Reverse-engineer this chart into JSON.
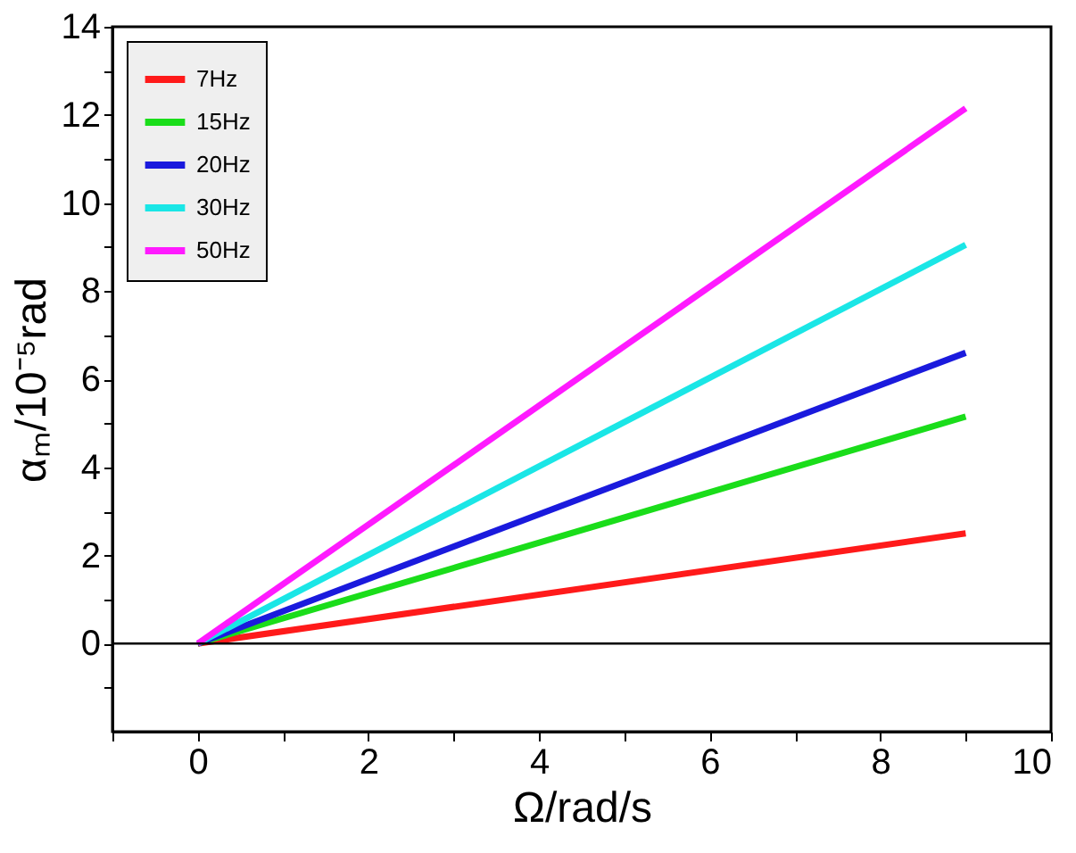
{
  "chart_data": {
    "type": "line",
    "xlabel": "Ω/rad/s",
    "ylabel": "αₘ/10⁻⁵rad",
    "x": [
      0,
      9
    ],
    "series": [
      {
        "name": "7Hz",
        "color": "#ff1a1a",
        "values": [
          0,
          2.5
        ]
      },
      {
        "name": "15Hz",
        "color": "#1add1a",
        "values": [
          0,
          5.15
        ]
      },
      {
        "name": "20Hz",
        "color": "#1a1add",
        "values": [
          0,
          6.6
        ]
      },
      {
        "name": "30Hz",
        "color": "#1ae6e6",
        "values": [
          0,
          9.05
        ]
      },
      {
        "name": "50Hz",
        "color": "#ff1aff",
        "values": [
          0,
          12.15
        ]
      }
    ],
    "xlim": [
      -1,
      10
    ],
    "ylim": [
      -2,
      14
    ],
    "xticks": [
      {
        "value": -1,
        "label": null
      },
      0,
      {
        "value": 1,
        "label": null
      },
      2,
      {
        "value": 3,
        "label": null
      },
      4,
      {
        "value": 5,
        "label": null
      },
      6,
      {
        "value": 7,
        "label": null
      },
      8,
      {
        "value": 9,
        "label": null
      },
      10
    ],
    "yticks": [
      {
        "value": -1,
        "label": null
      },
      0,
      {
        "value": 1,
        "label": null
      },
      2,
      {
        "value": 3,
        "label": null
      },
      4,
      {
        "value": 5,
        "label": null
      },
      6,
      {
        "value": 7,
        "label": null
      },
      8,
      {
        "value": 9,
        "label": null
      },
      10,
      {
        "value": 11,
        "label": null
      },
      12,
      {
        "value": 13,
        "label": null
      },
      14
    ],
    "ref_lines": [
      {
        "axis": "y",
        "value": 0,
        "color": "#000000"
      }
    ],
    "legend": "top left",
    "grid": false,
    "marker": "none",
    "line_style": "solid"
  }
}
